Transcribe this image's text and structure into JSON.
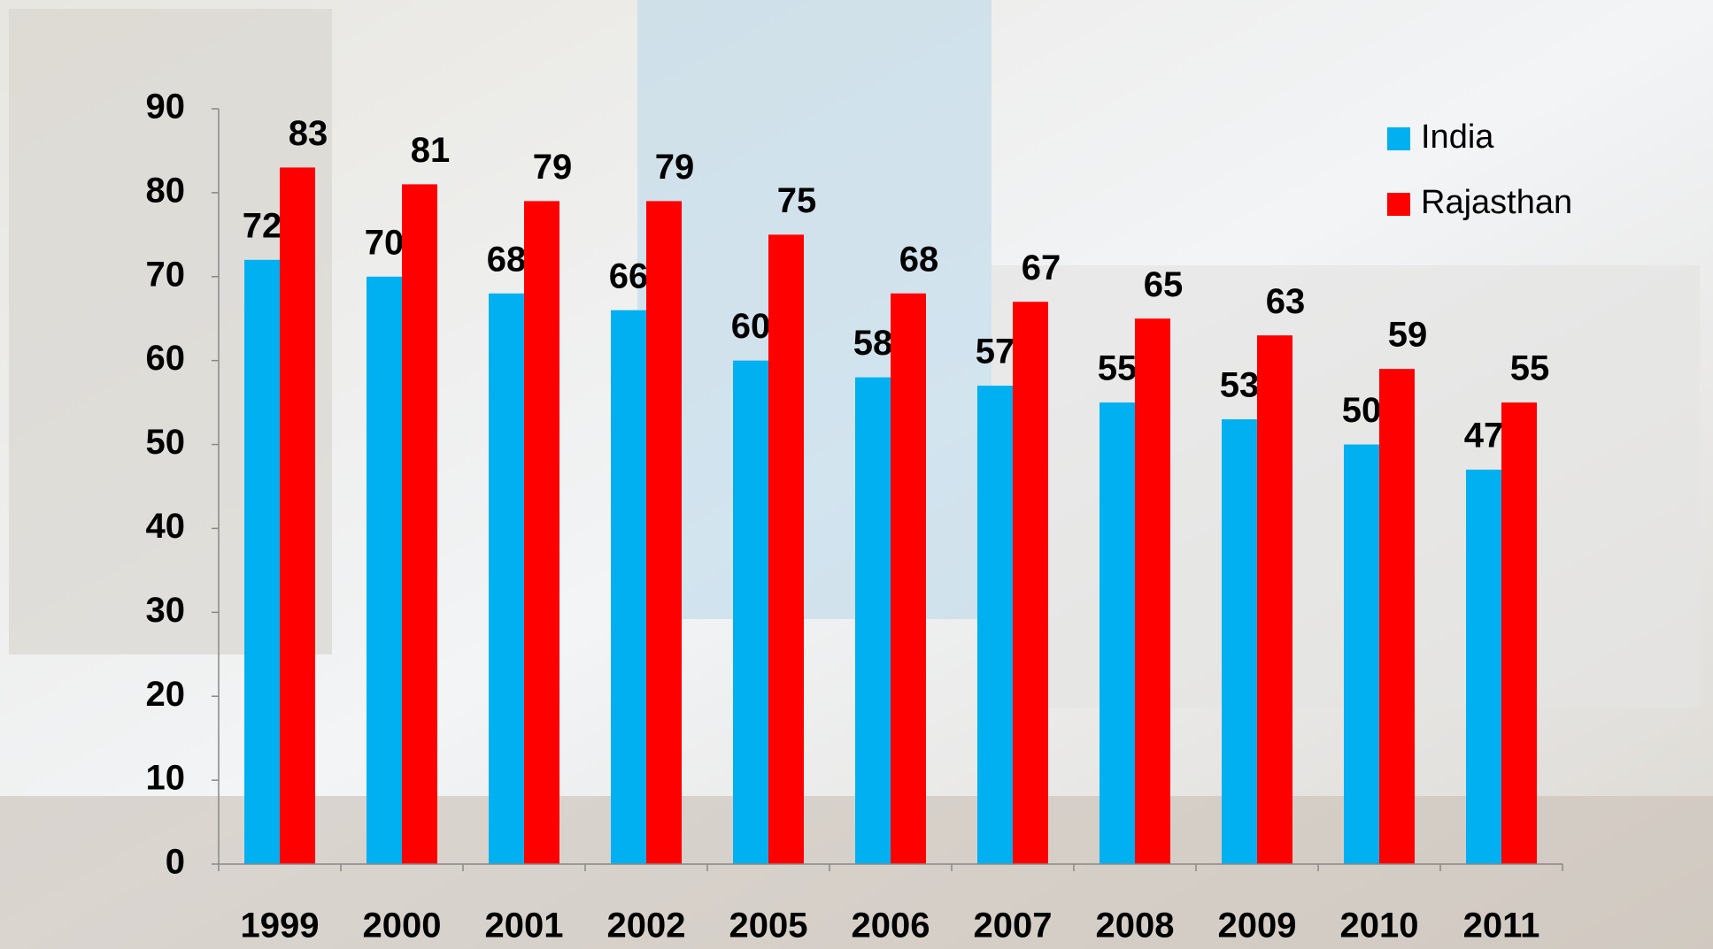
{
  "chart_data": {
    "type": "bar",
    "categories": [
      "1999",
      "2000",
      "2001",
      "2002",
      "2005",
      "2006",
      "2007",
      "2008",
      "2009",
      "2010",
      "2011"
    ],
    "series": [
      {
        "name": "India",
        "color": "#00b0f0",
        "values": [
          72,
          70,
          68,
          66,
          60,
          58,
          57,
          55,
          53,
          50,
          47
        ]
      },
      {
        "name": "Rajasthan",
        "color": "#ff0000",
        "values": [
          83,
          81,
          79,
          79,
          75,
          68,
          67,
          65,
          63,
          59,
          55
        ]
      }
    ],
    "ylim": [
      0,
      90
    ],
    "yticks": [
      0,
      10,
      20,
      30,
      40,
      50,
      60,
      70,
      80,
      90
    ],
    "legend": "top-right"
  }
}
